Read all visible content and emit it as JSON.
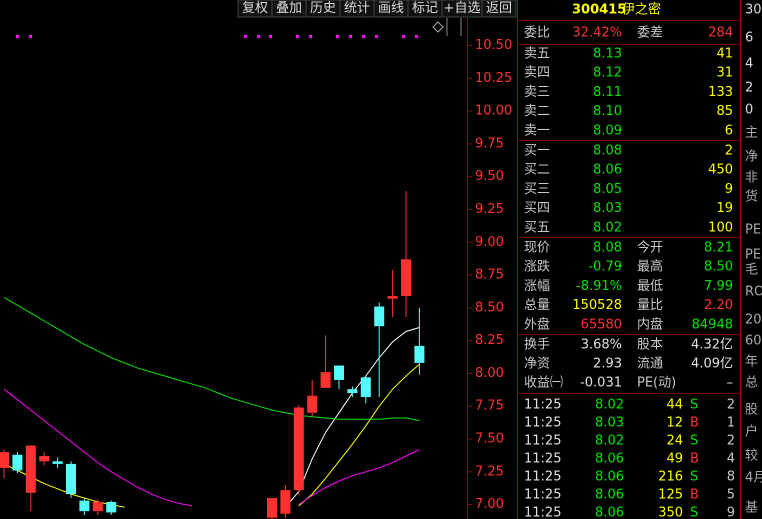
{
  "toolbar": {
    "buttons": [
      "复权",
      "叠加",
      "历史",
      "统计",
      "画线",
      "标记",
      "+自选",
      "返回"
    ]
  },
  "chart": {
    "type": "candlestick",
    "ylim": [
      6.89,
      10.71
    ],
    "yticks": [
      {
        "value": 10.5,
        "label": "10.50"
      },
      {
        "value": 10.25,
        "label": "10.25"
      },
      {
        "value": 10,
        "label": "10.00"
      },
      {
        "value": 9.75,
        "label": "9.75"
      },
      {
        "value": 9.5,
        "label": "9.50"
      },
      {
        "value": 9.25,
        "label": "9.25"
      },
      {
        "value": 9,
        "label": "9.00"
      },
      {
        "value": 8.75,
        "label": "8.75"
      },
      {
        "value": 8.5,
        "label": "8.50"
      },
      {
        "value": 8.25,
        "label": "8.25"
      },
      {
        "value": 8,
        "label": "8.00"
      },
      {
        "value": 7.75,
        "label": "7.75"
      },
      {
        "value": 7.5,
        "label": "7.50"
      },
      {
        "value": 7.25,
        "label": "7.25"
      },
      {
        "value": 7,
        "label": "7.00"
      }
    ],
    "up_color": "#ff3232",
    "down_color": "#54fcfc",
    "candles": [
      {
        "open": 7.28,
        "high": 7.42,
        "low": 7.2,
        "close": 7.4
      },
      {
        "open": 7.38,
        "high": 7.4,
        "low": 7.24,
        "close": 7.26
      },
      {
        "open": 7.09,
        "high": 7.45,
        "low": 6.95,
        "close": 7.45
      },
      {
        "open": 7.33,
        "high": 7.4,
        "low": 7.3,
        "close": 7.37
      },
      {
        "open": 7.33,
        "high": 7.36,
        "low": 7.28,
        "close": 7.31
      },
      {
        "open": 7.31,
        "high": 7.33,
        "low": 7.05,
        "close": 7.08
      },
      {
        "open": 7.03,
        "high": 7.05,
        "low": 6.92,
        "close": 6.95
      },
      {
        "open": 6.95,
        "high": 7.04,
        "low": 6.92,
        "close": 7.02
      },
      {
        "open": 7.02,
        "high": 7.03,
        "low": 6.92,
        "close": 6.94
      },
      null,
      null,
      null,
      null,
      null,
      null,
      null,
      null,
      null,
      null,
      null,
      {
        "open": 6.9,
        "high": 7.05,
        "low": 6.88,
        "close": 7.05
      },
      {
        "open": 6.93,
        "high": 7.15,
        "low": 6.9,
        "close": 7.11
      },
      {
        "open": 7.11,
        "high": 7.76,
        "low": 7.07,
        "close": 7.74
      },
      {
        "open": 7.7,
        "high": 7.95,
        "low": 7.67,
        "close": 7.83
      },
      {
        "open": 7.89,
        "high": 8.29,
        "low": 7.89,
        "close": 8.01
      },
      {
        "open": 8.06,
        "high": 8.06,
        "low": 7.88,
        "close": 7.95
      },
      {
        "open": 7.88,
        "high": 7.9,
        "low": 7.82,
        "close": 7.85
      },
      {
        "open": 7.97,
        "high": 7.98,
        "low": 7.77,
        "close": 7.82
      },
      {
        "open": 8.51,
        "high": 8.54,
        "low": 7.82,
        "close": 8.36
      },
      {
        "open": 8.57,
        "high": 8.79,
        "low": 8.43,
        "close": 8.59
      },
      {
        "open": 8.59,
        "high": 9.39,
        "low": 8.43,
        "close": 8.87
      },
      {
        "open": 8.21,
        "high": 8.5,
        "low": 7.99,
        "close": 8.08
      }
    ],
    "series": [
      {
        "color": "#ffffff",
        "values": [
          null,
          null,
          null,
          null,
          null,
          null,
          null,
          null,
          null,
          null,
          null,
          null,
          null,
          null,
          null,
          null,
          null,
          null,
          null,
          null,
          null,
          6.98,
          7.1,
          7.35,
          7.55,
          7.7,
          7.85,
          7.98,
          8.12,
          8.24,
          8.32,
          8.35
        ]
      },
      {
        "color": "#ffff00",
        "values": [
          7.31,
          7.26,
          7.21,
          7.16,
          7.12,
          7.08,
          7.05,
          7.02,
          7.0,
          6.98,
          null,
          null,
          null,
          null,
          null,
          null,
          null,
          null,
          null,
          null,
          null,
          null,
          6.99,
          7.08,
          7.2,
          7.33,
          7.46,
          7.6,
          7.75,
          7.88,
          7.98,
          8.07
        ]
      },
      {
        "color": "#00e600",
        "values": [
          8.58,
          8.52,
          8.46,
          8.4,
          8.34,
          8.28,
          8.22,
          8.17,
          8.12,
          8.08,
          8.04,
          8.01,
          7.98,
          7.95,
          7.92,
          7.89,
          7.85,
          7.81,
          7.78,
          7.75,
          7.72,
          7.7,
          7.68,
          7.67,
          7.66,
          7.65,
          7.65,
          7.65,
          7.65,
          7.66,
          7.66,
          7.64
        ]
      },
      {
        "color": "#ff00ff",
        "values": [
          7.88,
          7.8,
          7.72,
          7.64,
          7.56,
          7.48,
          7.4,
          7.32,
          7.25,
          7.19,
          7.13,
          7.08,
          7.04,
          7.01,
          6.99,
          null,
          null,
          null,
          null,
          null,
          null,
          null,
          7.0,
          7.07,
          7.13,
          7.18,
          7.22,
          7.25,
          7.28,
          7.32,
          7.37,
          7.42
        ]
      }
    ]
  },
  "quote": {
    "code": "300415",
    "name": "伊之密",
    "ratio": [
      {
        "label": "委比",
        "value": "32.42%"
      },
      {
        "label": "委差",
        "value": "284"
      }
    ],
    "asks": [
      {
        "label": "卖五",
        "price": "8.13",
        "volume": "41"
      },
      {
        "label": "卖四",
        "price": "8.12",
        "volume": "31"
      },
      {
        "label": "卖三",
        "price": "8.11",
        "volume": "133"
      },
      {
        "label": "卖二",
        "price": "8.10",
        "volume": "85"
      },
      {
        "label": "卖一",
        "price": "8.09",
        "volume": "6"
      }
    ],
    "bids": [
      {
        "label": "买一",
        "price": "8.08",
        "volume": "2"
      },
      {
        "label": "买二",
        "price": "8.06",
        "volume": "450"
      },
      {
        "label": "买三",
        "price": "8.05",
        "volume": "9"
      },
      {
        "label": "买四",
        "price": "8.03",
        "volume": "19"
      },
      {
        "label": "买五",
        "price": "8.02",
        "volume": "100"
      }
    ],
    "stats": [
      [
        {
          "label": "现价",
          "value": "8.08",
          "color": "#00e600"
        },
        {
          "label": "今开",
          "value": "8.21",
          "color": "#00e600"
        }
      ],
      [
        {
          "label": "涨跌",
          "value": "-0.79",
          "color": "#00e600"
        },
        {
          "label": "最高",
          "value": "8.50",
          "color": "#00e600"
        }
      ],
      [
        {
          "label": "涨幅",
          "value": "-8.91%",
          "color": "#00e600"
        },
        {
          "label": "最低",
          "value": "7.99",
          "color": "#00e600"
        }
      ],
      [
        {
          "label": "总量",
          "value": "150528",
          "color": "#ffff00"
        },
        {
          "label": "量比",
          "value": "2.20",
          "color": "#ff3232"
        }
      ],
      [
        {
          "label": "外盘",
          "value": "65580",
          "color": "#ff3232"
        },
        {
          "label": "内盘",
          "value": "84948",
          "color": "#00e600"
        }
      ]
    ],
    "fundamentals": [
      [
        {
          "label": "换手",
          "value": "3.68%"
        },
        {
          "label": "股本",
          "value": "4.32亿"
        }
      ],
      [
        {
          "label": "净资",
          "value": "2.93"
        },
        {
          "label": "流通",
          "value": "4.09亿"
        }
      ],
      [
        {
          "label": "收益㈠",
          "value": "-0.031"
        },
        {
          "label": "PE(动)",
          "value": "–"
        }
      ]
    ],
    "ticks": [
      {
        "time": "11:25",
        "price": "8.02",
        "volume": "44",
        "side": "S",
        "count": "2"
      },
      {
        "time": "11:25",
        "price": "8.03",
        "volume": "12",
        "side": "B",
        "count": "1"
      },
      {
        "time": "11:25",
        "price": "8.02",
        "volume": "24",
        "side": "S",
        "count": "2"
      },
      {
        "time": "11:25",
        "price": "8.06",
        "volume": "49",
        "side": "B",
        "count": "4"
      },
      {
        "time": "11:25",
        "price": "8.06",
        "volume": "216",
        "side": "S",
        "count": "8"
      },
      {
        "time": "11:25",
        "price": "8.06",
        "volume": "125",
        "side": "B",
        "count": "5"
      },
      {
        "time": "11:25",
        "price": "8.06",
        "volume": "350",
        "side": "S",
        "count": "9"
      }
    ]
  },
  "side_column": [
    "30",
    "6",
    "4",
    "2",
    "0",
    "主",
    "净",
    "非",
    "货",
    "PE",
    "PE",
    "毛",
    "RO",
    "20",
    "60",
    "年",
    "总",
    "股",
    "户",
    "较",
    "4月",
    "基"
  ]
}
